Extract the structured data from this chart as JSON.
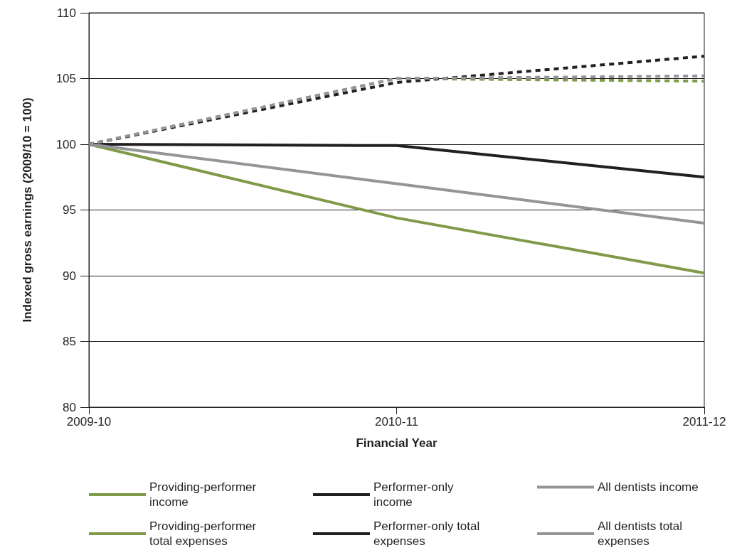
{
  "chart_data": {
    "type": "line",
    "xlabel": "Financial Year",
    "ylabel": "Indexed gross earnings (2009/10 = 100)",
    "categories": [
      "2009-10",
      "2010-11",
      "2011-12"
    ],
    "series": [
      {
        "name": "Providing-performer income",
        "color": "#7f9a48",
        "values": [
          100,
          94.4,
          90.2
        ],
        "line_style": "solid"
      },
      {
        "name": "Performer-only income",
        "color": "#231f20",
        "values": [
          100,
          99.9,
          97.5
        ],
        "line_style": "solid"
      },
      {
        "name": "All dentists income",
        "color": "#939598",
        "values": [
          100,
          97.0,
          94.0
        ],
        "line_style": "solid"
      },
      {
        "name": "Providing-performer total expenses",
        "color": "#7f9a48",
        "values": [
          100,
          105.0,
          104.8
        ],
        "line_style": "dashed"
      },
      {
        "name": "Performer-only total expenses",
        "color": "#231f20",
        "values": [
          100,
          104.7,
          106.7
        ],
        "line_style": "dashed"
      },
      {
        "name": "All dentists total expenses",
        "color": "#939598",
        "values": [
          100,
          105.0,
          105.2
        ],
        "line_style": "dashed"
      }
    ],
    "ylim": [
      80,
      110
    ],
    "yticks": [
      80,
      85,
      90,
      95,
      100,
      105,
      110
    ],
    "grid": "y",
    "legend": "bottom",
    "marker": "none"
  }
}
